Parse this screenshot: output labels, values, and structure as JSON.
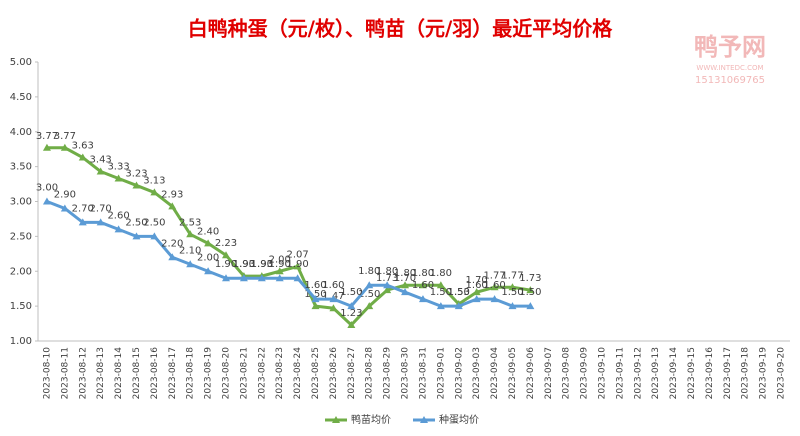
{
  "chart_data": {
    "type": "line",
    "title": "白鸭种蛋（元/枚）、鸭苗（元/羽）最近平均价格",
    "watermark": [
      "鸭予网",
      "WWW.INTEDC.COM",
      "15131069765"
    ],
    "categories": [
      "2023-08-10",
      "2023-08-11",
      "2023-08-12",
      "2023-08-13",
      "2023-08-14",
      "2023-08-15",
      "2023-08-16",
      "2023-08-17",
      "2023-08-18",
      "2023-08-19",
      "2023-08-20",
      "2023-08-21",
      "2023-08-22",
      "2023-08-23",
      "2023-08-24",
      "2023-08-25",
      "2023-08-26",
      "2023-08-27",
      "2023-08-28",
      "2023-08-29",
      "2023-08-30",
      "2023-08-31",
      "2023-09-01",
      "2023-09-02",
      "2023-09-03",
      "2023-09-04",
      "2023-09-05",
      "2023-09-06",
      "2023-09-07",
      "2023-09-08",
      "2023-09-09",
      "2023-09-10",
      "2023-09-11",
      "2023-09-12",
      "2023-09-13",
      "2023-09-14",
      "2023-09-15",
      "2023-09-16",
      "2023-09-17",
      "2023-09-18",
      "2023-09-19",
      "2023-09-20"
    ],
    "series": [
      {
        "name": "鸭苗均价",
        "color": "#70ad47",
        "values": [
          3.77,
          3.77,
          3.63,
          3.43,
          3.33,
          3.23,
          3.13,
          2.93,
          2.53,
          2.4,
          2.23,
          1.93,
          1.93,
          2,
          2.07,
          1.5,
          1.47,
          1.23,
          1.5,
          1.73,
          1.8,
          1.8,
          1.8,
          1.53,
          1.7,
          1.77,
          1.77,
          1.73,
          null,
          null,
          null,
          null,
          null,
          null,
          null,
          null,
          null,
          null,
          null,
          null,
          null,
          null
        ],
        "value_labels": [
          "3.77",
          "3.77",
          "3.63",
          "3.43",
          "3.33",
          "3.23",
          "3.13",
          "2.93",
          "2.53",
          "2.40",
          "2.23",
          "1.93",
          "1.93",
          "2.00",
          "2.07",
          "1.50",
          "1.47",
          "1.23",
          "1.50",
          "1.73",
          "1.80",
          "1.80",
          "1.80",
          "1.53",
          "1.70",
          "1.77",
          "1.77",
          "1.73",
          null,
          null,
          null,
          null,
          null,
          null,
          null,
          null,
          null,
          null,
          null,
          null,
          null,
          null
        ]
      },
      {
        "name": "种蛋均价",
        "color": "#5b9bd5",
        "values": [
          3,
          2.9,
          2.7,
          2.7,
          2.6,
          2.5,
          2.5,
          2.2,
          2.1,
          2,
          1.9,
          1.9,
          1.9,
          1.9,
          1.9,
          1.6,
          1.6,
          1.5,
          1.8,
          1.8,
          1.7,
          1.6,
          1.5,
          1.5,
          1.6,
          1.6,
          1.5,
          1.5,
          null,
          null,
          null,
          null,
          null,
          null,
          null,
          null,
          null,
          null,
          null,
          null,
          null,
          null
        ],
        "value_labels": [
          "3.00",
          "2.90",
          "2.70",
          "2.70",
          "2.60",
          "2.50",
          "2.50",
          "2.20",
          "2.10",
          "2.00",
          "1.90",
          "1.90",
          "1.90",
          "1.90",
          "1.90",
          "1.60",
          "1.60",
          "1.50",
          "1.80",
          "1.80",
          "1.70",
          "1.60",
          "1.50",
          "1.50",
          "1.60",
          "1.60",
          "1.50",
          "1.50",
          null,
          null,
          null,
          null,
          null,
          null,
          null,
          null,
          null,
          null,
          null,
          null,
          null,
          null
        ]
      }
    ],
    "ylim": [
      1,
      5
    ],
    "yticks": [
      {
        "value": 1,
        "label": "1.00"
      },
      {
        "value": 1.5,
        "label": "1.50"
      },
      {
        "value": 2,
        "label": "2.00"
      },
      {
        "value": 2.5,
        "label": "2.50"
      },
      {
        "value": 3,
        "label": "3.00"
      },
      {
        "value": 3.5,
        "label": "3.50"
      },
      {
        "value": 4,
        "label": "4.00"
      },
      {
        "value": 4.5,
        "label": "4.50"
      },
      {
        "value": 5,
        "label": "5.00"
      }
    ],
    "grid": false,
    "legend": "bottom"
  }
}
